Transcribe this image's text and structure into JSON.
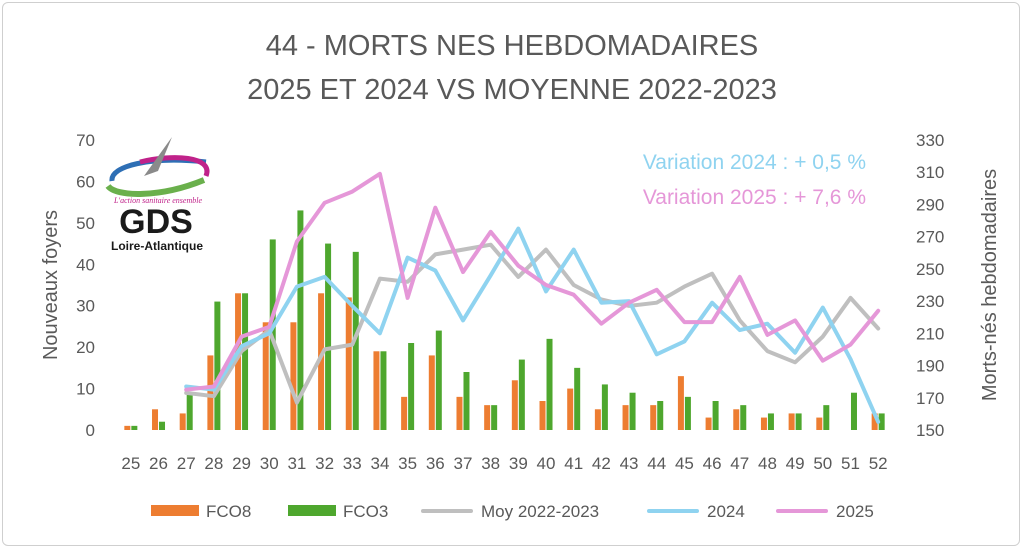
{
  "chart_data": {
    "type": "bar",
    "title_line1": "44 - MORTS NES HEBDOMADAIRES",
    "title_line2": "2025 ET 2024 VS MOYENNE 2022-2023",
    "ylabel_left": "Nouveaux foyers",
    "ylabel_right": "Morts-nés hebdomadaires",
    "ylim_left": [
      0,
      70
    ],
    "ylim_right": [
      150,
      330
    ],
    "yticks_left": [
      0,
      10,
      20,
      30,
      40,
      50,
      60,
      70
    ],
    "yticks_right": [
      150,
      170,
      190,
      210,
      230,
      250,
      270,
      290,
      310,
      330
    ],
    "categories": [
      "25",
      "26",
      "27",
      "28",
      "29",
      "30",
      "31",
      "32",
      "33",
      "34",
      "35",
      "36",
      "37",
      "38",
      "39",
      "40",
      "41",
      "42",
      "43",
      "44",
      "45",
      "46",
      "47",
      "48",
      "49",
      "50",
      "51",
      "52"
    ],
    "bar_series": [
      {
        "name": "FCO8",
        "color": "#ed7d31",
        "values": [
          1,
          5,
          4,
          18,
          33,
          26,
          26,
          33,
          32,
          19,
          8,
          18,
          8,
          6,
          12,
          7,
          10,
          5,
          6,
          6,
          13,
          3,
          5,
          3,
          4,
          3,
          0,
          4
        ]
      },
      {
        "name": "FCO3",
        "color": "#4ea72e",
        "values": [
          1,
          2,
          9,
          31,
          33,
          46,
          53,
          45,
          43,
          19,
          21,
          24,
          14,
          6,
          17,
          22,
          15,
          11,
          9,
          7,
          8,
          7,
          6,
          4,
          4,
          6,
          9,
          4
        ]
      }
    ],
    "line_series": [
      {
        "name": "Moy 2022-2023",
        "color": "#bfbfbf",
        "axis": "right",
        "values": [
          null,
          null,
          173,
          171,
          199,
          212,
          167,
          200,
          203,
          244,
          242,
          259,
          262,
          265,
          245,
          262,
          240,
          231,
          227,
          229,
          239,
          247,
          218,
          199,
          192,
          208,
          232,
          213
        ]
      },
      {
        "name": "2024",
        "color": "#8fd3f0",
        "axis": "right",
        "values": [
          null,
          null,
          177,
          175,
          202,
          210,
          239,
          245,
          227,
          210,
          257,
          249,
          218,
          246,
          275,
          236,
          262,
          229,
          230,
          197,
          205,
          229,
          212,
          216,
          198,
          226,
          194,
          155
        ]
      },
      {
        "name": "2025",
        "color": "#e597d8",
        "axis": "right",
        "values": [
          null,
          null,
          175,
          177,
          208,
          214,
          267,
          291,
          298,
          309,
          232,
          288,
          248,
          273,
          252,
          240,
          234,
          216,
          229,
          237,
          217,
          217,
          245,
          209,
          218,
          193,
          203,
          224
        ]
      }
    ],
    "annotations": [
      {
        "text": "Variation 2024 : + 0,5 %",
        "color": "#8fd3f0"
      },
      {
        "text": "Variation 2025 : + 7,6 %",
        "color": "#e597d8"
      }
    ],
    "legend": [
      "FCO8",
      "FCO3",
      "Moy 2022-2023",
      "2024",
      "2025"
    ],
    "legend_position": "bottom",
    "grid": false
  },
  "logo": {
    "tagline": "L'action sanitaire ensemble",
    "name": "GDS",
    "region": "Loire-Atlantique",
    "colors": {
      "blue": "#2e6fb5",
      "green": "#6ab04c",
      "magenta": "#c0228a",
      "gray": "#8a8a8a"
    }
  }
}
